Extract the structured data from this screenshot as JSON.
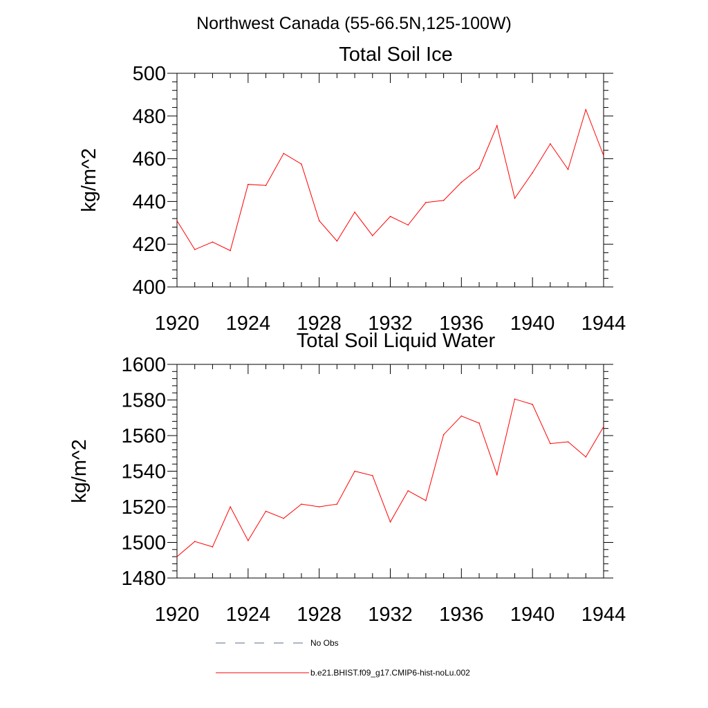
{
  "page_title": "Northwest Canada (55-66.5N,125-100W)",
  "chart_data": [
    {
      "type": "line",
      "title": "Total Soil Ice",
      "ylabel": "kg/m^2",
      "xlabel": "",
      "xlim": [
        1920,
        1944
      ],
      "ylim": [
        400,
        500
      ],
      "x_ticks": [
        1920,
        1924,
        1928,
        1932,
        1936,
        1940,
        1944
      ],
      "y_ticks": [
        400,
        420,
        440,
        460,
        480,
        500
      ],
      "grid": false,
      "series": [
        {
          "name": "b.e21.BHIST.f09_g17.CMIP6-hist-noLu.002",
          "color": "#ff0000",
          "x": [
            1920,
            1921,
            1922,
            1923,
            1924,
            1925,
            1926,
            1927,
            1928,
            1929,
            1930,
            1931,
            1932,
            1933,
            1934,
            1935,
            1936,
            1937,
            1938,
            1939,
            1940,
            1941,
            1942,
            1943,
            1944
          ],
          "values": [
            431,
            417.5,
            421,
            417,
            448,
            447.5,
            462.5,
            457.5,
            431,
            421.5,
            435,
            424,
            433,
            429,
            439.5,
            440.5,
            449,
            455.5,
            475.5,
            441.5,
            453.5,
            467,
            455,
            483,
            461.5
          ]
        }
      ]
    },
    {
      "type": "line",
      "title": "Total Soil Liquid Water",
      "ylabel": "kg/m^2",
      "xlabel": "",
      "xlim": [
        1920,
        1944
      ],
      "ylim": [
        1480,
        1600
      ],
      "x_ticks": [
        1920,
        1924,
        1928,
        1932,
        1936,
        1940,
        1944
      ],
      "y_ticks": [
        1480,
        1500,
        1520,
        1540,
        1560,
        1580,
        1600
      ],
      "grid": false,
      "series": [
        {
          "name": "b.e21.BHIST.f09_g17.CMIP6-hist-noLu.002",
          "color": "#ff0000",
          "x": [
            1920,
            1921,
            1922,
            1923,
            1924,
            1925,
            1926,
            1927,
            1928,
            1929,
            1930,
            1931,
            1932,
            1933,
            1934,
            1935,
            1936,
            1937,
            1938,
            1939,
            1940,
            1941,
            1942,
            1943,
            1944
          ],
          "values": [
            1492,
            1500.5,
            1497.5,
            1520,
            1501,
            1517.5,
            1513.5,
            1521.5,
            1520,
            1521.5,
            1540,
            1537.5,
            1511.5,
            1529,
            1523.5,
            1560.5,
            1571,
            1567,
            1538,
            1580.5,
            1577.5,
            1555.5,
            1556.5,
            1548,
            1565
          ]
        }
      ]
    }
  ],
  "legend": [
    {
      "label": "No Obs",
      "color": "#5a6a8a",
      "style": "dashed"
    },
    {
      "label": "b.e21.BHIST.f09_g17.CMIP6-hist-noLu.002",
      "color": "#ff0000",
      "style": "solid"
    }
  ]
}
